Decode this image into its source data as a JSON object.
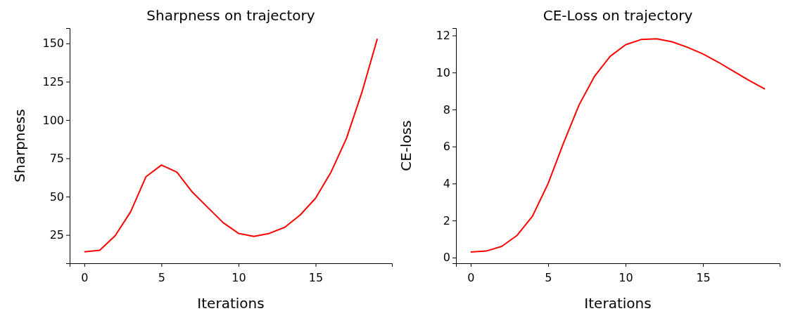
{
  "chart_data": [
    {
      "type": "line",
      "title": "Sharpness on trajectory",
      "xlabel": "Iterations",
      "ylabel": "Sharpness",
      "x": [
        0,
        1,
        2,
        3,
        4,
        5,
        6,
        7,
        8,
        9,
        10,
        11,
        12,
        13,
        14,
        15,
        16,
        17,
        18,
        19
      ],
      "series": [
        {
          "color": "#ff0000",
          "values": [
            14,
            15,
            24.5,
            40,
            63,
            70.6,
            66,
            53,
            43,
            33,
            26,
            24,
            26,
            30,
            38,
            49,
            66,
            88,
            118,
            153
          ]
        }
      ],
      "xlim": [
        -0.95,
        19.95
      ],
      "xticks": [
        0,
        5,
        10,
        15
      ],
      "ylim": [
        6.5,
        160
      ],
      "yticks": [
        25,
        50,
        75,
        100,
        125,
        150
      ],
      "grid": false,
      "marker": "none",
      "line_style": "solid"
    },
    {
      "type": "line",
      "title": "CE-Loss on trajectory",
      "xlabel": "Iterations",
      "ylabel": "CE-loss",
      "x": [
        0,
        1,
        2,
        3,
        4,
        5,
        6,
        7,
        8,
        9,
        10,
        11,
        12,
        13,
        14,
        15,
        16,
        17,
        18,
        19
      ],
      "series": [
        {
          "color": "#ff0000",
          "values": [
            0.3,
            0.35,
            0.6,
            1.2,
            2.25,
            4.0,
            6.2,
            8.25,
            9.8,
            10.87,
            11.5,
            11.78,
            11.82,
            11.66,
            11.36,
            11.0,
            10.55,
            10.05,
            9.56,
            9.1
          ]
        }
      ],
      "xlim": [
        -0.95,
        19.95
      ],
      "xticks": [
        0,
        5,
        10,
        15
      ],
      "ylim": [
        -0.31,
        12.4
      ],
      "yticks": [
        0,
        2,
        4,
        6,
        8,
        10,
        12
      ],
      "grid": false,
      "marker": "none",
      "line_style": "solid"
    }
  ]
}
